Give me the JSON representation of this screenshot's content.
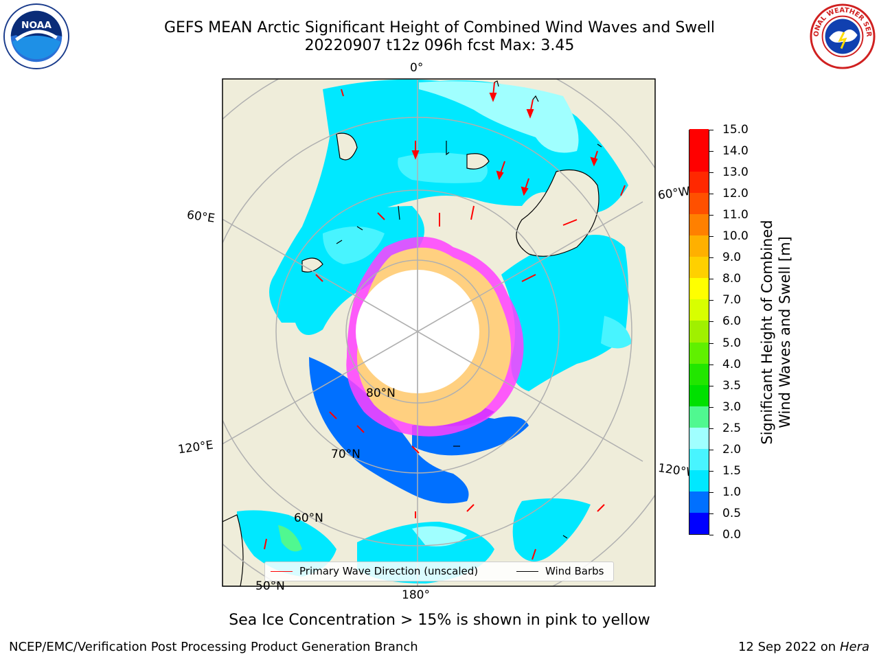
{
  "header": {
    "title_line1": "GEFS MEAN Arctic Significant Height of Combined Wind Waves and Swell",
    "title_line2": "20220907 t12z 096h fcst   Max: 3.45"
  },
  "map": {
    "lon_labels": {
      "top": "0°",
      "right_upper": "60°W",
      "left_upper": "60°E",
      "left_lower": "120°E",
      "right_lower": "120°W",
      "bottom": "180°"
    },
    "lat_labels": {
      "lat80": "80°N",
      "lat70": "70°N",
      "lat60": "60°N",
      "lat50": "50°N"
    },
    "colors": {
      "land": "#efedda",
      "ocean_frame": "#ffffff",
      "grid": "#b0b0b0",
      "ice_pink": "#ff40ff",
      "ice_yellow": "#ffd080"
    }
  },
  "colorbar": {
    "label": "Significant Height of Combined\nWind Waves and Swell [m]",
    "ticks": [
      "0.0",
      "0.5",
      "1.0",
      "1.5",
      "2.0",
      "2.5",
      "3.0",
      "3.5",
      "4.0",
      "5.0",
      "6.0",
      "7.0",
      "8.0",
      "9.0",
      "10.0",
      "11.0",
      "12.0",
      "13.0",
      "14.0",
      "15.0"
    ],
    "segment_colors": [
      "#0000ff",
      "#0070ff",
      "#00e8ff",
      "#48f4ff",
      "#a0ffff",
      "#50f890",
      "#00e000",
      "#22e600",
      "#60f000",
      "#a0f000",
      "#d8ff00",
      "#ffff00",
      "#ffd000",
      "#ffb000",
      "#ff8000",
      "#ff5000",
      "#ff2800",
      "#ff0000"
    ]
  },
  "legend": {
    "wave_direction": "Primary Wave Direction (unscaled)",
    "wind_barbs": "Wind Barbs",
    "wave_color": "#ff0000",
    "barb_color": "#000000"
  },
  "footer": {
    "note": "Sea Ice Concentration > 15% is shown in pink to yellow",
    "credit": "NCEP/EMC/Verification Post Processing Product Generation Branch",
    "date": "12 Sep 2022 on",
    "machine": "Hera"
  },
  "logos": {
    "left": "noaa-logo",
    "right": "nws-logo",
    "left_text": "NOAA",
    "right_text": "NATIONAL WEATHER SERVICE"
  }
}
